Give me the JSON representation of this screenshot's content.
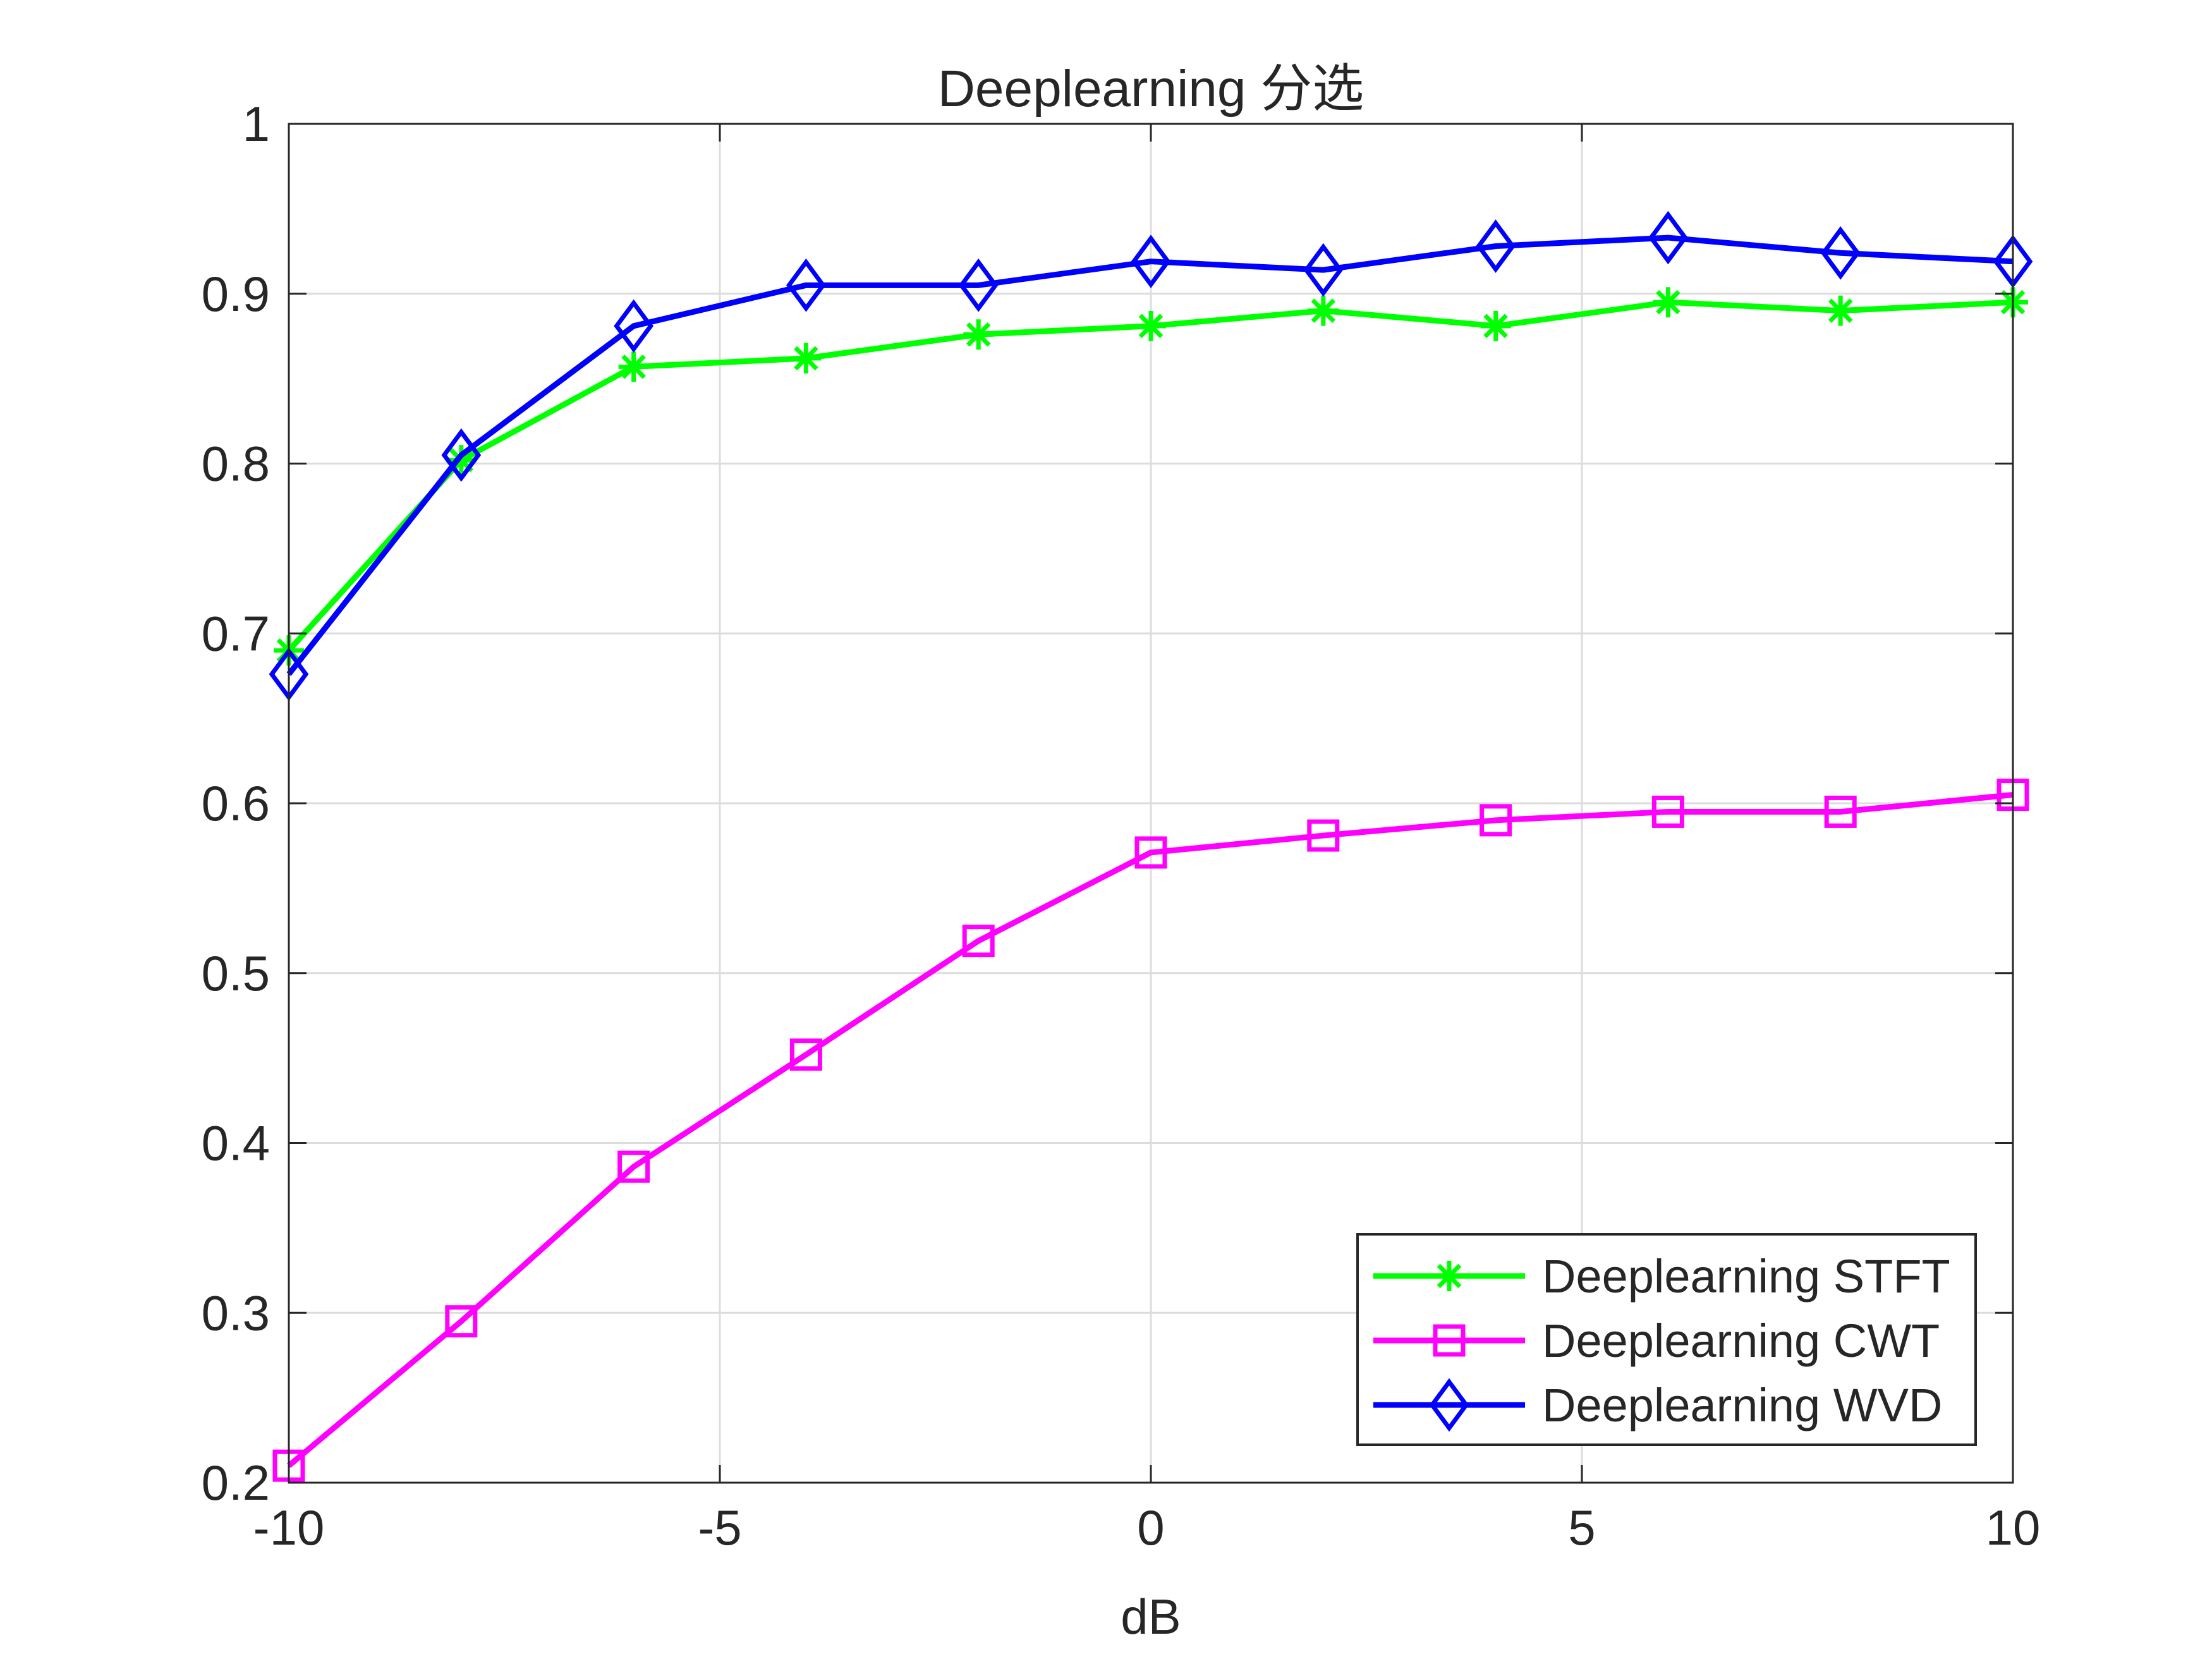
{
  "chart_data": {
    "type": "line",
    "title": "Deeplearning 分选",
    "xlabel": "dB",
    "ylabel": "",
    "xlim": [
      -10,
      10
    ],
    "ylim": [
      0.2,
      1
    ],
    "x_ticks": [
      "-10",
      "-5",
      "0",
      "5",
      "10"
    ],
    "y_ticks": [
      "0.2",
      "0.3",
      "0.4",
      "0.5",
      "0.6",
      "0.7",
      "0.8",
      "0.9",
      "1"
    ],
    "x_tick_values": [
      -10,
      -5,
      0,
      5,
      10
    ],
    "y_tick_values": [
      0.2,
      0.3,
      0.4,
      0.5,
      0.6,
      0.7,
      0.8,
      0.9,
      1.0
    ],
    "grid": true,
    "legend_position": "bottom-right",
    "x": [
      -10,
      -8,
      -6,
      -4,
      -2,
      0,
      2,
      4,
      6,
      8,
      10
    ],
    "series": [
      {
        "name": "Deeplearning STFT",
        "color": "#00ff00",
        "marker": "asterisk",
        "values": [
          0.69,
          0.802,
          0.857,
          0.862,
          0.876,
          0.881,
          0.89,
          0.881,
          0.895,
          0.89,
          0.895
        ]
      },
      {
        "name": "Deeplearning CWT",
        "color": "#ff00ff",
        "marker": "square",
        "values": [
          0.21,
          0.295,
          0.386,
          0.452,
          0.519,
          0.571,
          0.581,
          0.59,
          0.595,
          0.595,
          0.605
        ]
      },
      {
        "name": "Deeplearning WVD",
        "color": "#0000ff",
        "marker": "diamond",
        "values": [
          0.676,
          0.805,
          0.881,
          0.905,
          0.905,
          0.919,
          0.914,
          0.928,
          0.933,
          0.924,
          0.919
        ]
      }
    ]
  }
}
